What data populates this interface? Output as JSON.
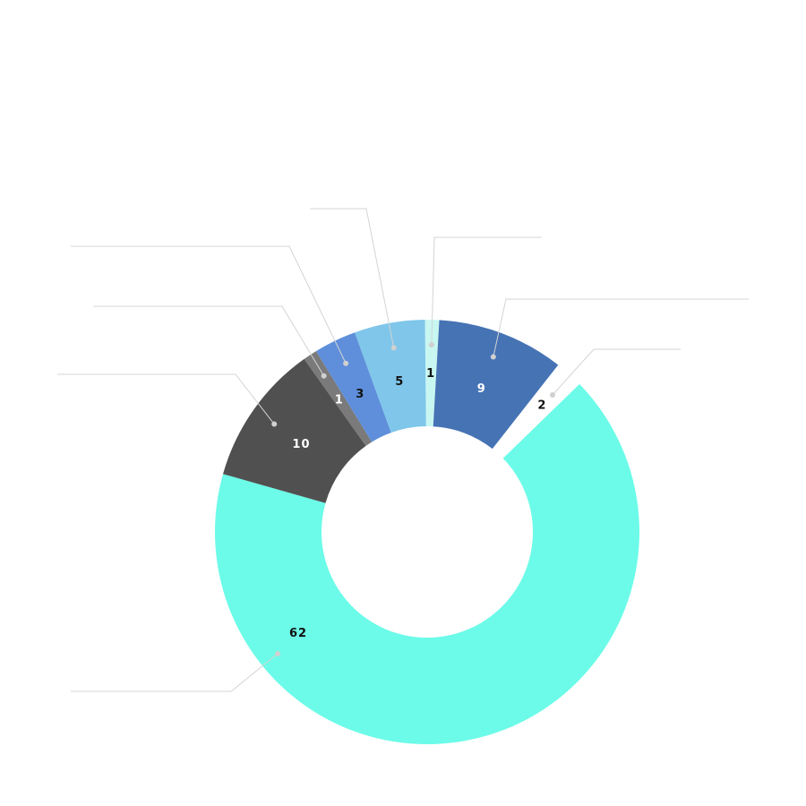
{
  "chart_data": {
    "type": "pie",
    "donut": true,
    "slices": [
      {
        "value": 1,
        "label": "1",
        "color": "#c8f7f1",
        "label_color": "#111111"
      },
      {
        "value": 9,
        "label": "9",
        "color": "#4673b4",
        "label_color": "#ffffff"
      },
      {
        "value": 2,
        "label": "2",
        "color": "#ffffff",
        "label_color": "#111111",
        "exploded": true
      },
      {
        "value": 62,
        "label": "62",
        "color": "#6cfbe8",
        "label_color": "#111111"
      },
      {
        "value": 10,
        "label": "10",
        "color": "#505050",
        "label_color": "#ffffff"
      },
      {
        "value": 1,
        "label": "1",
        "color": "#7a7a7a",
        "label_color": "#ffffff"
      },
      {
        "value": 3,
        "label": "3",
        "color": "#5f8fdb",
        "label_color": "#111111"
      },
      {
        "value": 5,
        "label": "5",
        "color": "#7fc6ea",
        "label_color": "#111111"
      }
    ],
    "legend": "none",
    "leader_lines": true
  }
}
